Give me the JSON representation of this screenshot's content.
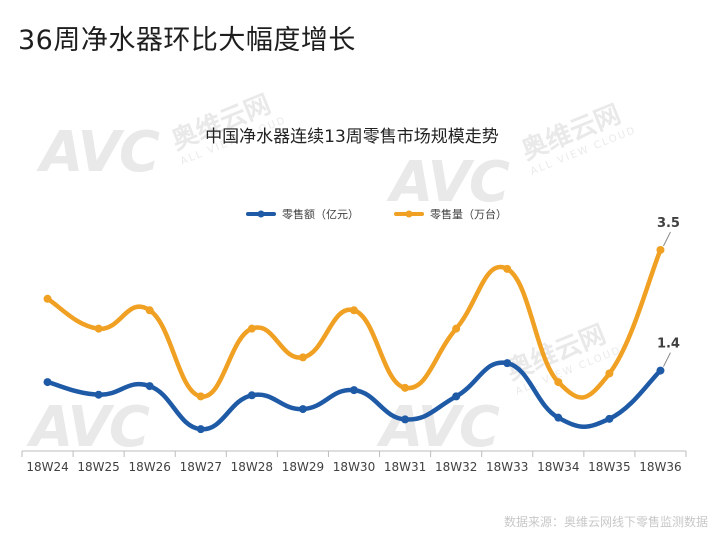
{
  "page": {
    "title": "36周净水器环比大幅度增长",
    "source": "数据来源：奥维云网线下零售监测数据",
    "watermark": {
      "logo": "AVC",
      "cn": "奥维云网",
      "en": "ALL VIEW CLOUD"
    }
  },
  "chart_data": {
    "type": "line",
    "title": "中国净水器连续13周零售市场规模走势",
    "xlabel": "",
    "ylabel": "",
    "categories": [
      "18W24",
      "18W25",
      "18W26",
      "18W27",
      "18W28",
      "18W29",
      "18W30",
      "18W31",
      "18W32",
      "18W33",
      "18W34",
      "18W35",
      "18W36"
    ],
    "ylim": [
      0,
      3.9
    ],
    "grid": false,
    "legend_position": "top",
    "smooth": true,
    "series": [
      {
        "name": "零售额（亿元）",
        "color": "#1f5aa6",
        "values": [
          1.2,
          0.98,
          1.13,
          0.38,
          0.97,
          0.73,
          1.06,
          0.55,
          0.95,
          1.53,
          0.58,
          0.56,
          1.4
        ],
        "labels": [
          "",
          "",
          "",
          "",
          "",
          "",
          "",
          "",
          "",
          "",
          "",
          "",
          "1.4"
        ]
      },
      {
        "name": "零售量（万台）",
        "color": "#f0a022",
        "values": [
          2.65,
          2.13,
          2.45,
          0.95,
          2.13,
          1.63,
          2.45,
          1.1,
          2.13,
          3.17,
          1.2,
          1.35,
          3.5
        ],
        "labels": [
          "",
          "",
          "",
          "",
          "",
          "",
          "",
          "",
          "",
          "",
          "",
          "",
          "3.5"
        ]
      }
    ]
  }
}
